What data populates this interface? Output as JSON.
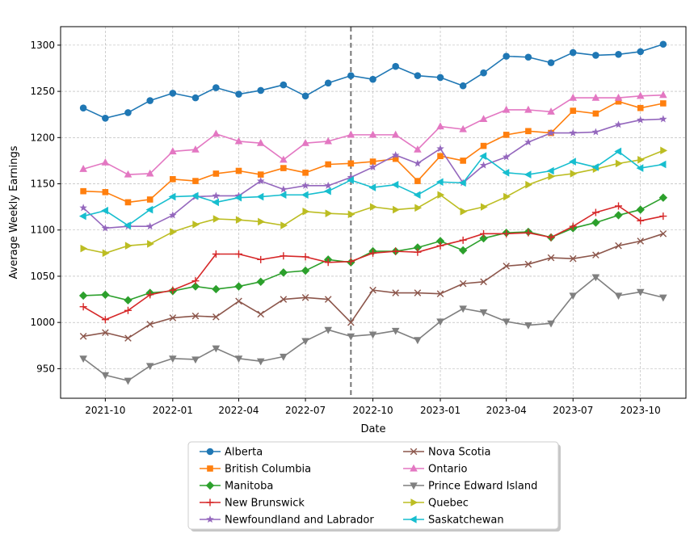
{
  "chart_data": {
    "type": "line",
    "title": "",
    "xlabel": "Date",
    "ylabel": "Average Weekly Earnings",
    "xlim": [
      "2021-08-01",
      "2023-12-02"
    ],
    "ylim": [
      918,
      1320
    ],
    "grid": true,
    "legend_position": "bottom-center",
    "vline": {
      "x": "2022-09-01",
      "style": "dashed",
      "color": "#777777"
    },
    "x_ticks": [
      {
        "date": "2021-10-01",
        "label": "2021-10"
      },
      {
        "date": "2022-01-01",
        "label": "2022-01"
      },
      {
        "date": "2022-04-01",
        "label": "2022-04"
      },
      {
        "date": "2022-07-01",
        "label": "2022-07"
      },
      {
        "date": "2022-10-01",
        "label": "2022-10"
      },
      {
        "date": "2023-01-01",
        "label": "2023-01"
      },
      {
        "date": "2023-04-01",
        "label": "2023-04"
      },
      {
        "date": "2023-07-01",
        "label": "2023-07"
      },
      {
        "date": "2023-10-01",
        "label": "2023-10"
      }
    ],
    "y_ticks": [
      950,
      1000,
      1050,
      1100,
      1150,
      1200,
      1250,
      1300
    ],
    "x": [
      "2021-09-01",
      "2021-10-01",
      "2021-11-01",
      "2021-12-01",
      "2022-01-01",
      "2022-02-01",
      "2022-03-01",
      "2022-04-01",
      "2022-05-01",
      "2022-06-01",
      "2022-07-01",
      "2022-08-01",
      "2022-09-01",
      "2022-10-01",
      "2022-11-01",
      "2022-12-01",
      "2023-01-01",
      "2023-02-01",
      "2023-03-01",
      "2023-04-01",
      "2023-05-01",
      "2023-06-01",
      "2023-07-01",
      "2023-08-01",
      "2023-09-01",
      "2023-10-01",
      "2023-11-01"
    ],
    "series": [
      {
        "name": "Alberta",
        "color": "#1f77b4",
        "marker": "circle",
        "values": [
          1232,
          1221,
          1227,
          1240,
          1248,
          1243,
          1254,
          1247,
          1251,
          1257,
          1245,
          1259,
          1267,
          1263,
          1277,
          1267,
          1265,
          1256,
          1270,
          1288,
          1287,
          1281,
          1292,
          1289,
          1290,
          1293,
          1301
        ]
      },
      {
        "name": "British Columbia",
        "color": "#ff7f0e",
        "marker": "square",
        "values": [
          1142,
          1141,
          1130,
          1133,
          1155,
          1153,
          1161,
          1164,
          1160,
          1167,
          1162,
          1171,
          1172,
          1174,
          1177,
          1153,
          1180,
          1175,
          1191,
          1203,
          1207,
          1205,
          1229,
          1226,
          1239,
          1232,
          1237
        ]
      },
      {
        "name": "Manitoba",
        "color": "#2ca02c",
        "marker": "diamond",
        "values": [
          1029,
          1030,
          1024,
          1032,
          1034,
          1039,
          1036,
          1039,
          1044,
          1054,
          1056,
          1068,
          1065,
          1077,
          1077,
          1081,
          1088,
          1078,
          1091,
          1097,
          1098,
          1092,
          1102,
          1108,
          1116,
          1122,
          1135
        ]
      },
      {
        "name": "New Brunswick",
        "color": "#d62728",
        "marker": "plus",
        "values": [
          1017,
          1003,
          1013,
          1030,
          1035,
          1045,
          1074,
          1074,
          1068,
          1072,
          1071,
          1065,
          1066,
          1075,
          1077,
          1076,
          1083,
          1089,
          1096,
          1096,
          1097,
          1092,
          1104,
          1119,
          1126,
          1110,
          1115
        ]
      },
      {
        "name": "Newfoundland and Labrador",
        "color": "#9467bd",
        "marker": "star",
        "values": [
          1124,
          1102,
          1104,
          1104,
          1116,
          1136,
          1137,
          1137,
          1153,
          1144,
          1148,
          1148,
          1157,
          1168,
          1181,
          1172,
          1188,
          1151,
          1170,
          1179,
          1195,
          1205,
          1205,
          1206,
          1214,
          1219,
          1220
        ]
      },
      {
        "name": "Nova Scotia",
        "color": "#8c564b",
        "marker": "x",
        "values": [
          985,
          989,
          983,
          998,
          1005,
          1007,
          1006,
          1023,
          1009,
          1025,
          1027,
          1025,
          1000,
          1035,
          1032,
          1032,
          1031,
          1042,
          1044,
          1061,
          1063,
          1070,
          1069,
          1073,
          1083,
          1088,
          1096
        ]
      },
      {
        "name": "Ontario",
        "color": "#e377c2",
        "marker": "triangle-up",
        "values": [
          1166,
          1173,
          1160,
          1161,
          1185,
          1187,
          1204,
          1196,
          1194,
          1176,
          1194,
          1196,
          1203,
          1203,
          1203,
          1187,
          1212,
          1209,
          1220,
          1230,
          1230,
          1228,
          1243,
          1243,
          1243,
          1245,
          1246
        ]
      },
      {
        "name": "Prince Edward Island",
        "color": "#7f7f7f",
        "marker": "triangle-down",
        "values": [
          961,
          943,
          937,
          953,
          961,
          960,
          972,
          961,
          958,
          963,
          980,
          992,
          985,
          987,
          991,
          981,
          1001,
          1015,
          1011,
          1001,
          997,
          999,
          1029,
          1049,
          1029,
          1033,
          1027
        ]
      },
      {
        "name": "Quebec",
        "color": "#bcbd22",
        "marker": "triangle-right",
        "values": [
          1080,
          1075,
          1083,
          1085,
          1098,
          1106,
          1112,
          1111,
          1109,
          1105,
          1120,
          1118,
          1117,
          1125,
          1122,
          1124,
          1138,
          1120,
          1125,
          1136,
          1149,
          1158,
          1161,
          1166,
          1172,
          1176,
          1186
        ]
      },
      {
        "name": "Saskatchewan",
        "color": "#17becf",
        "marker": "triangle-left",
        "values": [
          1115,
          1121,
          1105,
          1122,
          1136,
          1137,
          1130,
          1135,
          1136,
          1138,
          1138,
          1142,
          1154,
          1146,
          1149,
          1138,
          1152,
          1151,
          1180,
          1162,
          1160,
          1164,
          1174,
          1168,
          1185,
          1167,
          1171
        ]
      }
    ]
  }
}
